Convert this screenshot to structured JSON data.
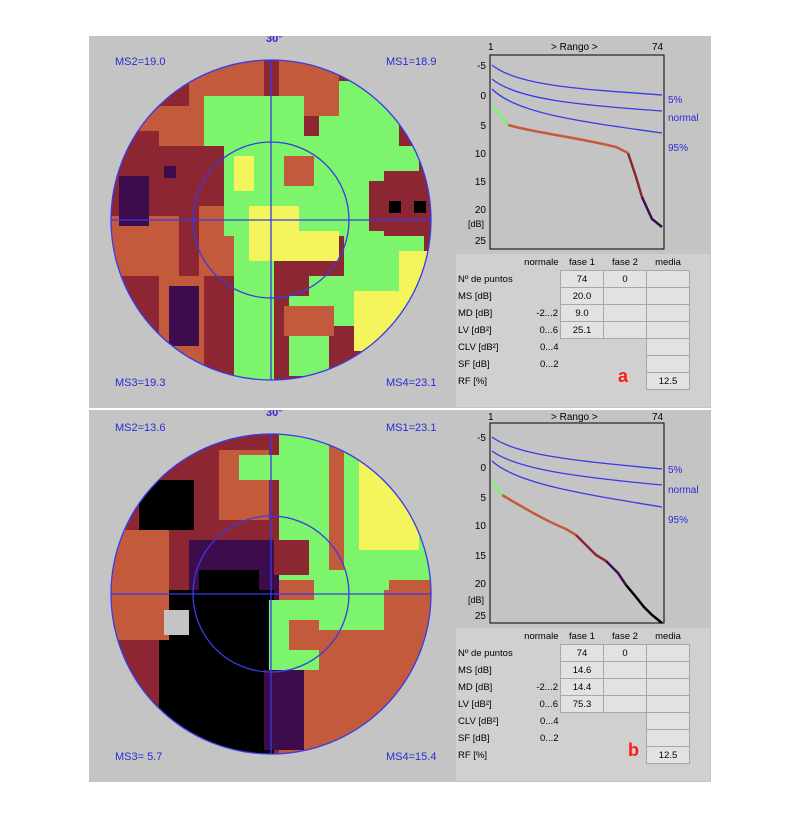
{
  "panels": [
    {
      "id": "a",
      "tag": "a",
      "degree_label": "30°",
      "quadrants": {
        "ms2": "MS2=19.0",
        "ms1": "MS1=18.9",
        "ms3": "MS3=19.3",
        "ms4": "MS4=23.1"
      },
      "curve": {
        "x_start": "1",
        "range_label": "> Rango >",
        "x_end": "74",
        "y_ticks": [
          "-5",
          "0",
          "5",
          "10",
          "15",
          "20",
          "25"
        ],
        "y_unit": "[dB]",
        "band_labels": [
          "5%",
          "normal",
          "95%"
        ]
      },
      "stats": {
        "headers": [
          "normale",
          "fase 1",
          "fase 2",
          "media"
        ],
        "rows": [
          {
            "label": "Nº de puntos",
            "range": "",
            "fase1": "74",
            "fase2": "0",
            "media": ""
          },
          {
            "label": "MS [dB]",
            "range": "",
            "fase1": "20.0",
            "fase2": "",
            "media": ""
          },
          {
            "label": "MD [dB]",
            "range": "-2...2",
            "fase1": "9.0",
            "fase2": "",
            "media": ""
          },
          {
            "label": "LV [dB²]",
            "range": "0...6",
            "fase1": "25.1",
            "fase2": "",
            "media": ""
          },
          {
            "label": "CLV [dB²]",
            "range": "0...4",
            "fase1": "",
            "fase2": "",
            "media": ""
          },
          {
            "label": "SF [dB]",
            "range": "0...2",
            "fase1": "",
            "fase2": "",
            "media": ""
          },
          {
            "label": "RF [%]",
            "range": "",
            "fase1": "",
            "fase2": "",
            "media": "12.5"
          }
        ]
      }
    },
    {
      "id": "b",
      "tag": "b",
      "degree_label": "30°",
      "quadrants": {
        "ms2": "MS2=13.6",
        "ms1": "MS1=23.1",
        "ms3": "MS3= 5.7",
        "ms4": "MS4=15.4"
      },
      "curve": {
        "x_start": "1",
        "range_label": "> Rango >",
        "x_end": "74",
        "y_ticks": [
          "-5",
          "0",
          "5",
          "10",
          "15",
          "20",
          "25"
        ],
        "y_unit": "[dB]",
        "band_labels": [
          "5%",
          "normal",
          "95%"
        ]
      },
      "stats": {
        "headers": [
          "normale",
          "fase 1",
          "fase 2",
          "media"
        ],
        "rows": [
          {
            "label": "Nº de puntos",
            "range": "",
            "fase1": "74",
            "fase2": "0",
            "media": ""
          },
          {
            "label": "MS [dB]",
            "range": "",
            "fase1": "14.6",
            "fase2": "",
            "media": ""
          },
          {
            "label": "MD [dB]",
            "range": "-2...2",
            "fase1": "14.4",
            "fase2": "",
            "media": ""
          },
          {
            "label": "LV [dB²]",
            "range": "0...6",
            "fase1": "75.3",
            "fase2": "",
            "media": ""
          },
          {
            "label": "CLV [dB²]",
            "range": "0...4",
            "fase1": "",
            "fase2": "",
            "media": ""
          },
          {
            "label": "SF [dB]",
            "range": "0...2",
            "fase1": "",
            "fase2": "",
            "media": ""
          },
          {
            "label": "RF [%]",
            "range": "",
            "fase1": "",
            "fase2": "",
            "media": "12.5"
          }
        ]
      }
    }
  ],
  "colors": {
    "background": "#c4c4c4",
    "grid_blue": "#3a3ae6",
    "green": "#7cf46c",
    "yellow": "#f4f45c",
    "orange": "#c45a3c",
    "maroon": "#8c2632",
    "purple": "#3c0c4c",
    "black": "#000000",
    "tag_red": "#ff1a1a"
  }
}
